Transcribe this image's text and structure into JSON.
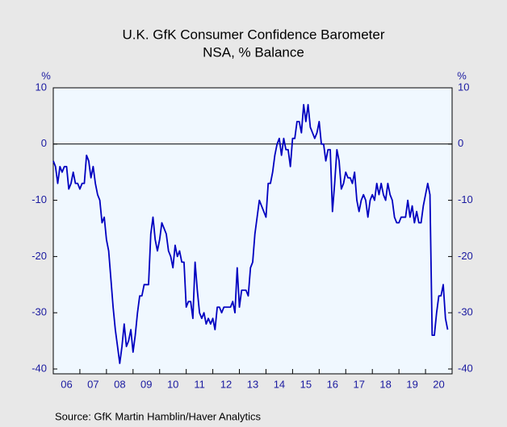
{
  "chart_data": {
    "type": "line",
    "title": "U.K. GfK Consumer Confidence Barometer",
    "subtitle": "NSA, % Balance",
    "source": "Source:  GfK Martin Hamblin/Haver Analytics",
    "y_label": "%",
    "ylim": [
      -40,
      10
    ],
    "yticks": [
      10,
      0,
      -10,
      -20,
      -30,
      -40
    ],
    "xlim": [
      2006,
      2021
    ],
    "xticks": [
      {
        "value": 2006.5,
        "label": "06"
      },
      {
        "value": 2007.5,
        "label": "07"
      },
      {
        "value": 2008.5,
        "label": "08"
      },
      {
        "value": 2009.5,
        "label": "09"
      },
      {
        "value": 2010.5,
        "label": "10"
      },
      {
        "value": 2011.5,
        "label": "11"
      },
      {
        "value": 2012.5,
        "label": "12"
      },
      {
        "value": 2013.5,
        "label": "13"
      },
      {
        "value": 2014.5,
        "label": "14"
      },
      {
        "value": 2015.5,
        "label": "15"
      },
      {
        "value": 2016.5,
        "label": "16"
      },
      {
        "value": 2017.5,
        "label": "17"
      },
      {
        "value": 2018.5,
        "label": "18"
      },
      {
        "value": 2019.5,
        "label": "19"
      },
      {
        "value": 2020.5,
        "label": "20"
      }
    ],
    "x": [
      2006,
      2006.083,
      2006.167,
      2006.25,
      2006.333,
      2006.417,
      2006.5,
      2006.583,
      2006.667,
      2006.75,
      2006.833,
      2006.917,
      2007,
      2007.083,
      2007.167,
      2007.25,
      2007.333,
      2007.417,
      2007.5,
      2007.583,
      2007.667,
      2007.75,
      2007.833,
      2007.917,
      2008,
      2008.083,
      2008.167,
      2008.25,
      2008.333,
      2008.417,
      2008.5,
      2008.583,
      2008.667,
      2008.75,
      2008.833,
      2008.917,
      2009,
      2009.083,
      2009.167,
      2009.25,
      2009.333,
      2009.417,
      2009.5,
      2009.583,
      2009.667,
      2009.75,
      2009.833,
      2009.917,
      2010,
      2010.083,
      2010.167,
      2010.25,
      2010.333,
      2010.417,
      2010.5,
      2010.583,
      2010.667,
      2010.75,
      2010.833,
      2010.917,
      2011,
      2011.083,
      2011.167,
      2011.25,
      2011.333,
      2011.417,
      2011.5,
      2011.583,
      2011.667,
      2011.75,
      2011.833,
      2011.917,
      2012,
      2012.083,
      2012.167,
      2012.25,
      2012.333,
      2012.417,
      2012.5,
      2012.583,
      2012.667,
      2012.75,
      2012.833,
      2012.917,
      2013,
      2013.083,
      2013.167,
      2013.25,
      2013.333,
      2013.417,
      2013.5,
      2013.583,
      2013.667,
      2013.75,
      2013.833,
      2013.917,
      2014,
      2014.083,
      2014.167,
      2014.25,
      2014.333,
      2014.417,
      2014.5,
      2014.583,
      2014.667,
      2014.75,
      2014.833,
      2014.917,
      2015,
      2015.083,
      2015.167,
      2015.25,
      2015.333,
      2015.417,
      2015.5,
      2015.583,
      2015.667,
      2015.75,
      2015.833,
      2015.917,
      2016,
      2016.083,
      2016.167,
      2016.25,
      2016.333,
      2016.417,
      2016.5,
      2016.583,
      2016.667,
      2016.75,
      2016.833,
      2016.917,
      2017,
      2017.083,
      2017.167,
      2017.25,
      2017.333,
      2017.417,
      2017.5,
      2017.583,
      2017.667,
      2017.75,
      2017.833,
      2017.917,
      2018,
      2018.083,
      2018.167,
      2018.25,
      2018.333,
      2018.417,
      2018.5,
      2018.583,
      2018.667,
      2018.75,
      2018.833,
      2018.917,
      2019,
      2019.083,
      2019.167,
      2019.25,
      2019.333,
      2019.417,
      2019.5,
      2019.583,
      2019.667,
      2019.75,
      2019.833,
      2019.917,
      2020,
      2020.083,
      2020.167,
      2020.25,
      2020.333,
      2020.417,
      2020.5,
      2020.583,
      2020.667,
      2020.75,
      2020.833
    ],
    "series": [
      {
        "color": "#0000c0",
        "values": [
          -3,
          -4,
          -7,
          -4,
          -5,
          -4,
          -4,
          -8,
          -7,
          -5,
          -7,
          -7,
          -8,
          -7,
          -7,
          -2,
          -3,
          -6,
          -4,
          -7,
          -9,
          -10,
          -14,
          -13,
          -17,
          -19,
          -24,
          -29,
          -33,
          -36,
          -39,
          -36,
          -32,
          -36,
          -35,
          -33,
          -37,
          -34,
          -30,
          -27,
          -27,
          -25,
          -25,
          -25,
          -16,
          -13,
          -17,
          -19,
          -17,
          -14,
          -15,
          -16,
          -19,
          -20,
          -22,
          -18,
          -20,
          -19,
          -21,
          -21,
          -29,
          -28,
          -28,
          -31,
          -21,
          -26,
          -30,
          -31,
          -30,
          -32,
          -31,
          -32,
          -31,
          -33,
          -29,
          -29,
          -30,
          -29,
          -29,
          -29,
          -29,
          -28,
          -30,
          -22,
          -29,
          -26,
          -26,
          -26,
          -27,
          -22,
          -21,
          -16,
          -13,
          -10,
          -11,
          -12,
          -13,
          -7,
          -7,
          -5,
          -2,
          0,
          1,
          -2,
          1,
          -1,
          -1,
          -4,
          1,
          1,
          4,
          4,
          2,
          7,
          4,
          7,
          3,
          2,
          1,
          2,
          4,
          0,
          0,
          -3,
          -1,
          -1,
          -12,
          -7,
          -1,
          -3,
          -8,
          -7,
          -5,
          -6,
          -6,
          -7,
          -5,
          -10,
          -12,
          -10,
          -9,
          -10,
          -13,
          -10,
          -9,
          -10,
          -7,
          -9,
          -7,
          -9,
          -10,
          -7,
          -9,
          -10,
          -13,
          -14,
          -14,
          -13,
          -13,
          -13,
          -10,
          -13,
          -11,
          -14,
          -12,
          -14,
          -14,
          -11,
          -9,
          -7,
          -9,
          -34,
          -34,
          -30,
          -27,
          -27,
          -25,
          -31,
          -33
        ]
      }
    ]
  }
}
